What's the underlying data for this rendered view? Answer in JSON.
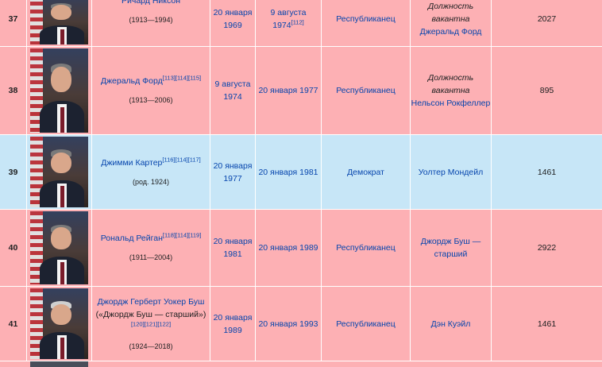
{
  "rows": [
    {
      "number": "37",
      "name": "",
      "name_partial": "Ричард Никсон",
      "refs": [],
      "years": "(1913—1994)",
      "start": "20 января 1969",
      "end": "9 августа 1974",
      "end_refs": [
        "[112]"
      ],
      "party": "Республиканец",
      "vp_note": "Должность вакантна",
      "vp_link": "Джеральд Форд",
      "days": "2027",
      "color": "rep"
    },
    {
      "number": "38",
      "name": "Джеральд Форд",
      "refs": [
        "[113]",
        "[114]",
        "[115]"
      ],
      "years": "(1913—2006)",
      "start": "9 августа 1974",
      "end": "20 января 1977",
      "party": "Республиканец",
      "vp_note": "Должность вакантна",
      "vp_link": "Нельсон Рокфеллер",
      "days": "895",
      "color": "rep"
    },
    {
      "number": "39",
      "name": "Джимми Картер",
      "refs": [
        "[116]",
        "[114]",
        "[117]"
      ],
      "years": "(род. 1924)",
      "start": "20 января 1977",
      "end": "20 января 1981",
      "party": "Демократ",
      "vp_link": "Уолтер Мондейл",
      "days": "1461",
      "color": "dem"
    },
    {
      "number": "40",
      "name": "Рональд Рейган",
      "refs": [
        "[118]",
        "[114]",
        "[119]"
      ],
      "years": "(1911—2004)",
      "start": "20 января 1981",
      "end": "20 января 1989",
      "party": "Республиканец",
      "vp_link": "Джордж Буш — старший",
      "days": "2922",
      "color": "rep"
    },
    {
      "number": "41",
      "name": "Джордж Герберт Уокер Буш",
      "name_extra": "(«Джордж Буш — старший»)",
      "refs": [
        "[120]",
        "[121]",
        "[122]"
      ],
      "years": "(1924—2018)",
      "start": "20 января 1989",
      "end": "20 января 1993",
      "party": "Республиканец",
      "vp_link": "Дэн Куэйл",
      "days": "1461",
      "color": "rep"
    }
  ],
  "colors": {
    "republican": "#fdb0b4",
    "democrat": "#c7e6f7",
    "link": "#0645ad"
  },
  "icons": {
    "portrait": "president-portrait-photo"
  }
}
